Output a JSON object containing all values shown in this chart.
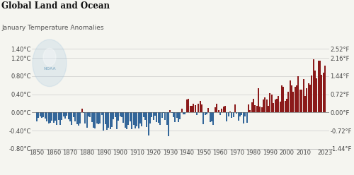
{
  "title": "Global Land and Ocean",
  "subtitle": "January Temperature Anomalies",
  "years": [
    1850,
    1851,
    1852,
    1853,
    1854,
    1855,
    1856,
    1857,
    1858,
    1859,
    1860,
    1861,
    1862,
    1863,
    1864,
    1865,
    1866,
    1867,
    1868,
    1869,
    1870,
    1871,
    1872,
    1873,
    1874,
    1875,
    1876,
    1877,
    1878,
    1879,
    1880,
    1881,
    1882,
    1883,
    1884,
    1885,
    1886,
    1887,
    1888,
    1889,
    1890,
    1891,
    1892,
    1893,
    1894,
    1895,
    1896,
    1897,
    1898,
    1899,
    1900,
    1901,
    1902,
    1903,
    1904,
    1905,
    1906,
    1907,
    1908,
    1909,
    1910,
    1911,
    1912,
    1913,
    1914,
    1915,
    1916,
    1917,
    1918,
    1919,
    1920,
    1921,
    1922,
    1923,
    1924,
    1925,
    1926,
    1927,
    1928,
    1929,
    1930,
    1931,
    1932,
    1933,
    1934,
    1935,
    1936,
    1937,
    1938,
    1939,
    1940,
    1941,
    1942,
    1943,
    1944,
    1945,
    1946,
    1947,
    1948,
    1949,
    1950,
    1951,
    1952,
    1953,
    1954,
    1955,
    1956,
    1957,
    1958,
    1959,
    1960,
    1961,
    1962,
    1963,
    1964,
    1965,
    1966,
    1967,
    1968,
    1969,
    1970,
    1971,
    1972,
    1973,
    1974,
    1975,
    1976,
    1977,
    1978,
    1979,
    1980,
    1981,
    1982,
    1983,
    1984,
    1985,
    1986,
    1987,
    1988,
    1989,
    1990,
    1991,
    1992,
    1993,
    1994,
    1995,
    1996,
    1997,
    1998,
    1999,
    2000,
    2001,
    2002,
    2003,
    2004,
    2005,
    2006,
    2007,
    2008,
    2009,
    2010,
    2011,
    2012,
    2013,
    2014,
    2015,
    2016,
    2017,
    2018,
    2019,
    2020,
    2021,
    2022,
    2023
  ],
  "anomalies": [
    -0.19,
    -0.12,
    -0.08,
    -0.12,
    -0.11,
    -0.13,
    -0.2,
    -0.24,
    -0.23,
    -0.18,
    -0.22,
    -0.18,
    -0.28,
    -0.17,
    -0.27,
    -0.17,
    -0.09,
    -0.14,
    -0.07,
    -0.15,
    -0.2,
    -0.27,
    -0.11,
    -0.19,
    -0.26,
    -0.29,
    -0.24,
    0.08,
    -0.01,
    -0.24,
    -0.33,
    -0.09,
    -0.11,
    -0.21,
    -0.33,
    -0.35,
    -0.24,
    -0.26,
    -0.24,
    -0.05,
    -0.4,
    -0.26,
    -0.38,
    -0.33,
    -0.36,
    -0.32,
    -0.15,
    -0.11,
    -0.36,
    -0.18,
    -0.09,
    -0.1,
    -0.22,
    -0.34,
    -0.37,
    -0.27,
    -0.19,
    -0.36,
    -0.27,
    -0.35,
    -0.31,
    -0.35,
    -0.25,
    -0.3,
    -0.11,
    -0.17,
    -0.32,
    -0.51,
    -0.24,
    -0.1,
    -0.16,
    -0.07,
    -0.21,
    -0.22,
    -0.27,
    -0.12,
    -0.01,
    -0.17,
    -0.28,
    -0.52,
    0.06,
    -0.01,
    -0.1,
    -0.21,
    -0.12,
    -0.21,
    -0.15,
    0.08,
    -0.04,
    -0.04,
    0.28,
    0.3,
    0.14,
    0.15,
    0.2,
    0.16,
    -0.05,
    0.19,
    0.25,
    0.17,
    -0.26,
    -0.06,
    -0.04,
    0.1,
    -0.21,
    -0.19,
    -0.27,
    0.12,
    0.19,
    0.06,
    -0.05,
    0.08,
    0.13,
    0.14,
    -0.19,
    -0.09,
    0.02,
    -0.12,
    -0.1,
    0.18,
    -0.03,
    -0.18,
    -0.09,
    -0.06,
    -0.25,
    -0.08,
    -0.22,
    0.18,
    0.06,
    0.22,
    0.3,
    0.16,
    0.15,
    0.54,
    0.13,
    0.11,
    0.28,
    0.34,
    0.28,
    0.14,
    0.42,
    0.4,
    0.21,
    0.28,
    0.3,
    0.36,
    0.24,
    0.6,
    0.56,
    0.25,
    0.3,
    0.46,
    0.71,
    0.59,
    0.46,
    0.56,
    0.6,
    0.8,
    0.51,
    0.51,
    0.74,
    0.37,
    0.53,
    0.64,
    0.62,
    0.81,
    1.17,
    0.92,
    0.76,
    1.15,
    1.14,
    0.83,
    0.87,
    1.03
  ],
  "ylim": [
    -0.8,
    1.4
  ],
  "yticks_c_vals": [
    -0.8,
    -0.4,
    0.0,
    0.4,
    0.8,
    1.2,
    1.4
  ],
  "ytick_labels_c": [
    "-0.80°C",
    "-0.40°C",
    "0.00°C",
    "0.40°C",
    "0.80°C",
    "1.20°C",
    "1.40°C"
  ],
  "ytick_labels_f": [
    "-1.44°F",
    "-0.72°F",
    "0.00°F",
    "0.72°F",
    "1.44°F",
    "2.16°F",
    "2.52°F"
  ],
  "xticks": [
    1850,
    1860,
    1870,
    1880,
    1890,
    1900,
    1910,
    1920,
    1930,
    1940,
    1950,
    1960,
    1970,
    1980,
    1990,
    2000,
    2010,
    2023
  ],
  "color_positive": "#8B1A1A",
  "color_negative": "#336699",
  "grid_color": "#CCCCCC",
  "background_color": "#F5F5F0",
  "title_fontsize": 8.5,
  "subtitle_fontsize": 6.5,
  "tick_fontsize": 6,
  "noaa_color": "#A8C8E0"
}
